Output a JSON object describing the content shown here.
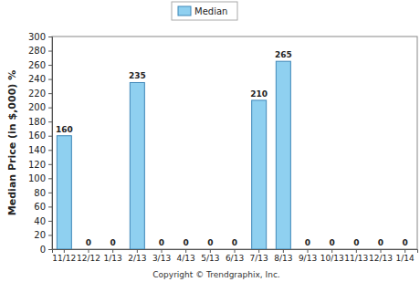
{
  "chart_data": {
    "type": "bar",
    "categories": [
      "11/12",
      "12/12",
      "1/13",
      "2/13",
      "3/13",
      "4/13",
      "5/13",
      "6/13",
      "7/13",
      "8/13",
      "9/13",
      "10/13",
      "11/13",
      "12/13",
      "1/14"
    ],
    "series": [
      {
        "name": "Median",
        "color": "#8fd0f0",
        "values": [
          160,
          0,
          0,
          235,
          0,
          0,
          0,
          0,
          210,
          265,
          0,
          0,
          0,
          0,
          0
        ]
      }
    ],
    "ylim": [
      0,
      300
    ],
    "yticks": [
      0,
      20,
      40,
      60,
      80,
      100,
      120,
      140,
      160,
      180,
      200,
      220,
      240,
      260,
      280,
      300
    ],
    "y_label": "Median Price (in $,000) %",
    "annotations": [
      "Copyright © Trendgraphix, Inc."
    ],
    "legend": "top",
    "data_labels": true,
    "grid": false
  }
}
